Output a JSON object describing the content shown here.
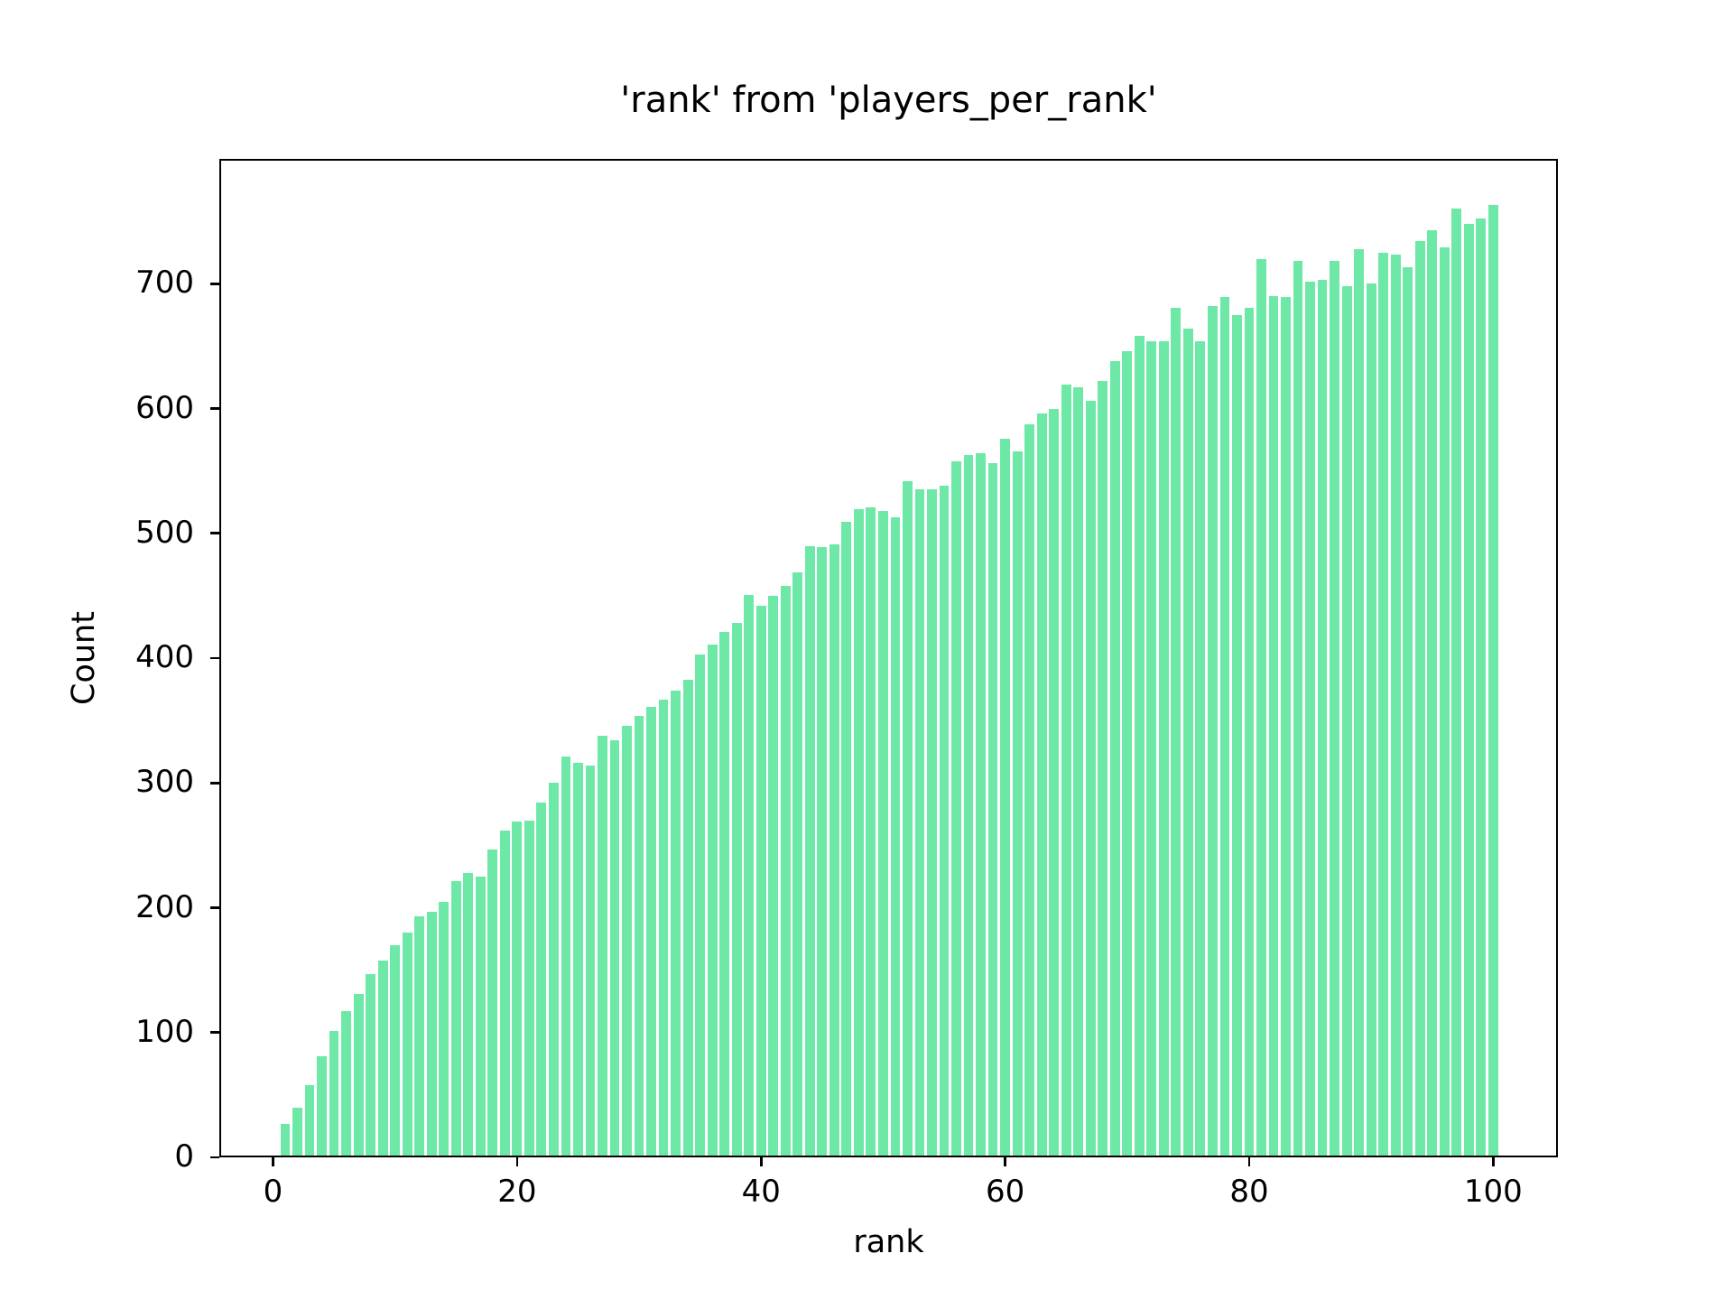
{
  "figure": {
    "background": "#ffffff"
  },
  "chart_data": {
    "type": "bar",
    "title": "'rank' from 'players_per_rank'",
    "xlabel": "rank",
    "ylabel": "Count",
    "bar_color": "#6ee8a7",
    "grid": false,
    "legend": null,
    "xlim": [
      -4.4,
      105.3
    ],
    "ylim": [
      0,
      800
    ],
    "x_ticks": [
      0,
      20,
      40,
      60,
      80,
      100
    ],
    "y_ticks": [
      0,
      100,
      200,
      300,
      400,
      500,
      600,
      700
    ],
    "categories": [
      1,
      2,
      3,
      4,
      5,
      6,
      7,
      8,
      9,
      10,
      11,
      12,
      13,
      14,
      15,
      16,
      17,
      18,
      19,
      20,
      21,
      22,
      23,
      24,
      25,
      26,
      27,
      28,
      29,
      30,
      31,
      32,
      33,
      34,
      35,
      36,
      37,
      38,
      39,
      40,
      41,
      42,
      43,
      44,
      45,
      46,
      47,
      48,
      49,
      50,
      51,
      52,
      53,
      54,
      55,
      56,
      57,
      58,
      59,
      60,
      61,
      62,
      63,
      64,
      65,
      66,
      67,
      68,
      69,
      70,
      71,
      72,
      73,
      74,
      75,
      76,
      77,
      78,
      79,
      80,
      81,
      82,
      83,
      84,
      85,
      86,
      87,
      88,
      89,
      90,
      91,
      92,
      93,
      94,
      95,
      96,
      97,
      98,
      99,
      100
    ],
    "values": [
      27,
      40,
      58,
      81,
      101,
      117,
      131,
      147,
      158,
      170,
      180,
      193,
      197,
      205,
      221,
      228,
      225,
      247,
      262,
      269,
      270,
      284,
      300,
      321,
      316,
      314,
      338,
      334,
      346,
      354,
      361,
      367,
      374,
      383,
      403,
      411,
      421,
      428,
      451,
      442,
      450,
      458,
      469,
      490,
      489,
      491,
      509,
      519,
      521,
      518,
      513,
      542,
      535,
      535,
      538,
      558,
      563,
      564,
      556,
      576,
      566,
      587,
      596,
      600,
      619,
      617,
      606,
      622,
      638,
      646,
      658,
      654,
      654,
      681,
      664,
      654,
      682,
      689,
      675,
      681,
      720,
      690,
      689,
      718,
      702,
      703,
      718,
      698,
      728,
      700,
      725,
      723,
      713,
      734,
      743,
      729,
      760,
      748,
      752,
      763
    ]
  }
}
